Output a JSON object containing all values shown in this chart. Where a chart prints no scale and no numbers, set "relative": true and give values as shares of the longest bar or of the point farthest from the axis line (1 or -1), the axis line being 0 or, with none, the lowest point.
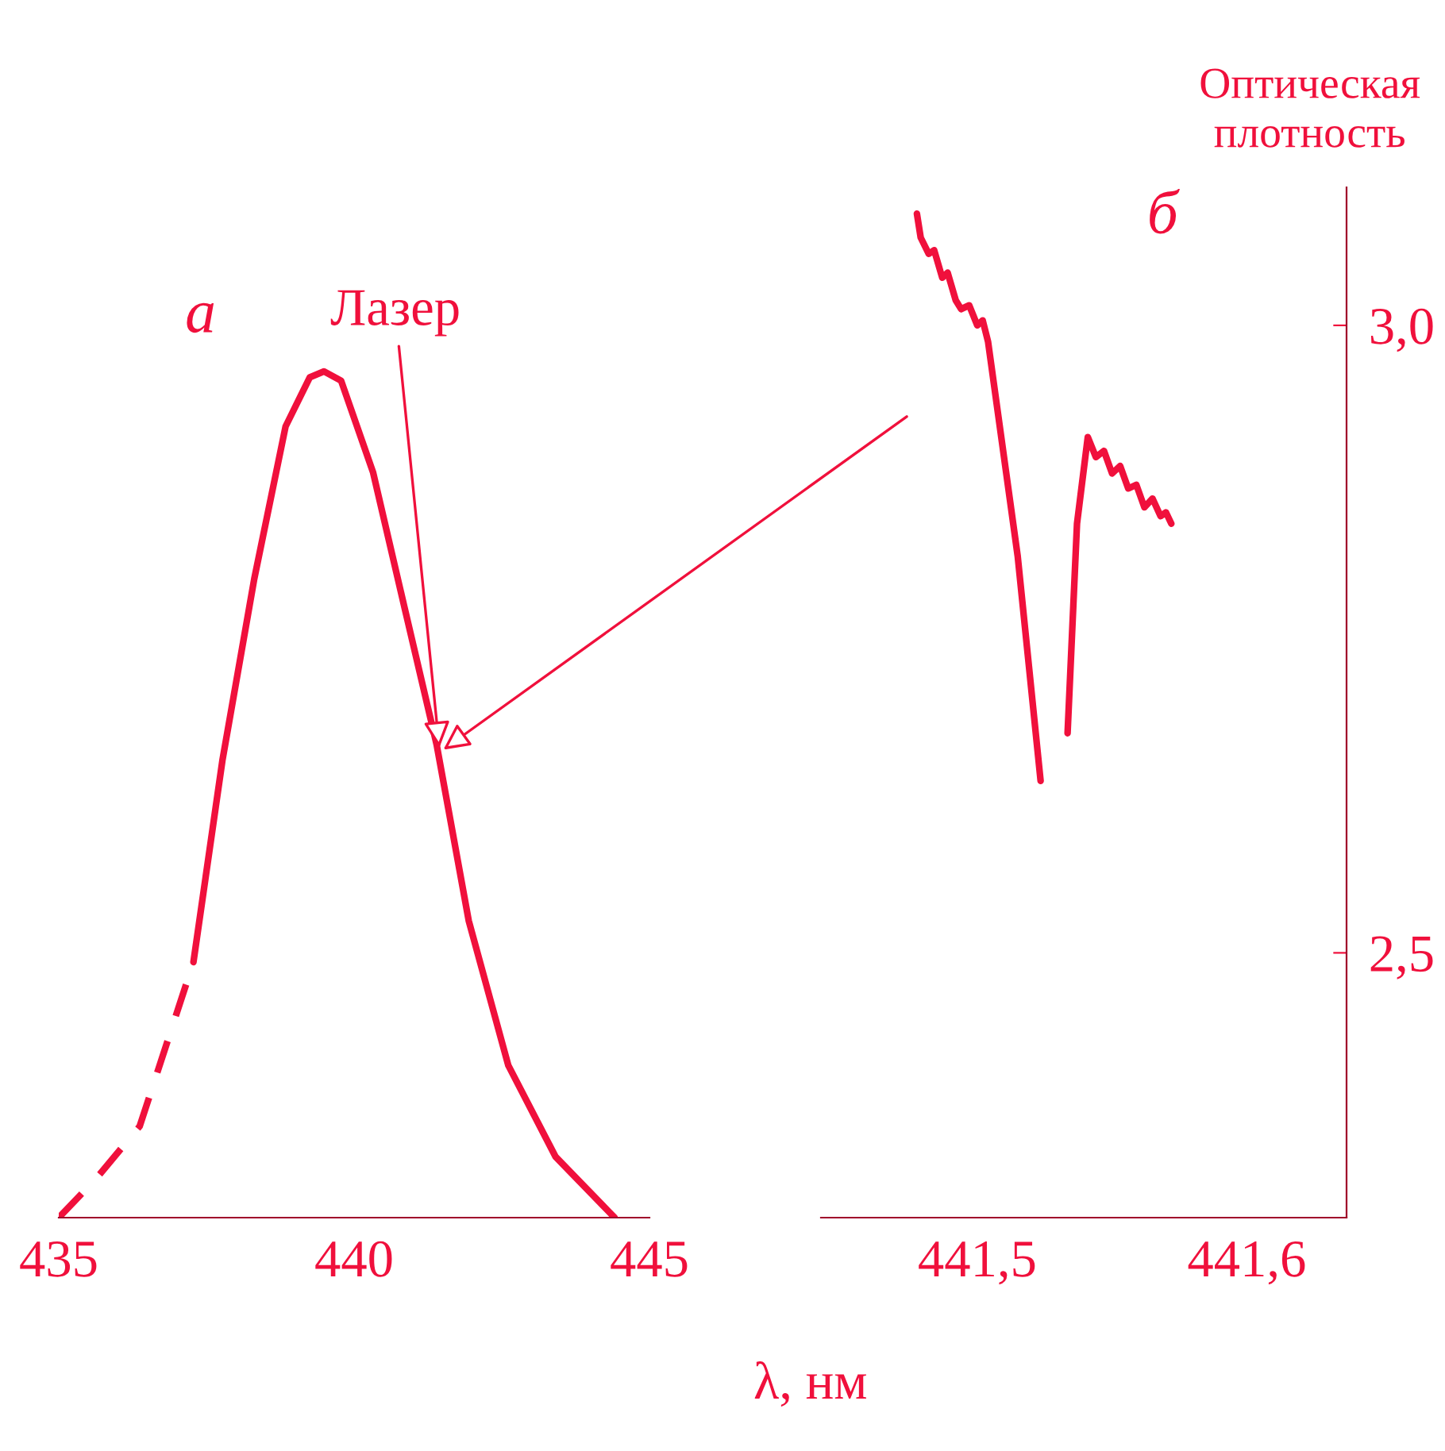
{
  "chart_data": [
    {
      "type": "line",
      "relative": true,
      "xlim": [
        435,
        445
      ],
      "xticks": [
        435,
        440,
        445
      ],
      "grid": false,
      "legend": false,
      "marker": "none",
      "annotations": [
        "а",
        {
          "text": "Лазер",
          "x": 441.45,
          "y": 0.55
        }
      ],
      "series": [
        {
          "color": "#f0103c",
          "line_style": "dashed",
          "x": [
            435.0,
            435.62,
            436.37,
            437.28
          ],
          "values": [
            0,
            0.045,
            0.108,
            0.302
          ]
        },
        {
          "color": "#f0103c",
          "line_style": "solid",
          "x": [
            437.28,
            437.77,
            438.31,
            438.84,
            439.25,
            439.49,
            439.78,
            440.32,
            440.86,
            441.4,
            441.94,
            442.61,
            443.41,
            444.41
          ],
          "values": [
            0.302,
            0.54,
            0.755,
            0.935,
            0.993,
            1.0,
            0.989,
            0.881,
            0.719,
            0.558,
            0.351,
            0.18,
            0.072,
            0
          ]
        }
      ]
    },
    {
      "type": "line",
      "xlim": [
        441.442,
        441.637
      ],
      "ylim": [
        2.289,
        3.11
      ],
      "xticks": [
        {
          "value": 441.5,
          "label": "441,5"
        },
        {
          "value": 441.6,
          "label": "441,6"
        }
      ],
      "yticks": [
        {
          "value": 2.5,
          "label": "2,5"
        },
        {
          "value": 3.0,
          "label": "3,0"
        }
      ],
      "ylabel": "Оптическая плотность",
      "xlabel": "λ, нм",
      "grid": false,
      "legend": false,
      "marker": "none",
      "annotations": [
        "б"
      ],
      "series": [
        {
          "color": "#f0103c",
          "line_style": "solid",
          "x": [
            441.4776,
            441.479,
            441.482,
            441.484,
            441.487,
            441.489,
            441.492,
            441.494,
            441.497,
            441.5,
            441.502,
            441.504,
            441.515,
            441.5235,
            null,
            441.5335,
            441.537,
            441.541,
            441.544,
            441.547,
            441.55,
            441.553,
            441.556,
            441.559,
            441.562,
            441.565,
            441.568,
            441.57,
            441.572
          ],
          "values": [
            3.089,
            3.07,
            3.057,
            3.06,
            3.038,
            3.042,
            3.02,
            3.013,
            3.016,
            3.0,
            3.004,
            2.987,
            2.816,
            2.637,
            null,
            2.675,
            2.842,
            2.911,
            2.895,
            2.9,
            2.882,
            2.888,
            2.87,
            2.873,
            2.855,
            2.862,
            2.848,
            2.851,
            2.842
          ]
        }
      ]
    }
  ]
}
